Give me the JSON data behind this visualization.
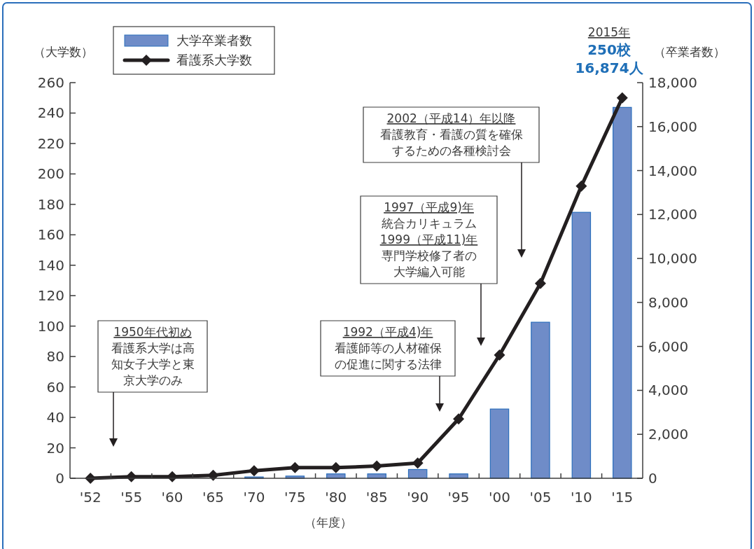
{
  "chart_data": {
    "type": "bar",
    "categories": [
      "'52",
      "'55",
      "'60",
      "'65",
      "'70",
      "'75",
      "'80",
      "'85",
      "'90",
      "'95",
      "'00",
      "'05",
      "'10",
      "'15"
    ],
    "series": [
      {
        "name": "大学卒業者数",
        "axis": "y2",
        "color": "#6f8cc8",
        "values": [
          0,
          0,
          0,
          null,
          60,
          100,
          200,
          200,
          400,
          200,
          3150,
          7100,
          12100,
          16874
        ]
      },
      {
        "name": "看護系大学数",
        "type": "line",
        "axis": "y",
        "color": "#231f20",
        "marker": "diamond",
        "values": [
          0,
          1,
          1,
          2,
          5,
          7,
          7,
          8,
          10,
          39,
          81,
          128,
          192,
          250
        ]
      }
    ],
    "xlabel": "（年度）",
    "ylabel": "（大学数）",
    "y2label": "（卒業者数）",
    "ylim": [
      0,
      260
    ],
    "yticks": [
      0,
      20,
      40,
      60,
      80,
      100,
      120,
      140,
      160,
      180,
      200,
      220,
      240,
      260
    ],
    "y2lim": [
      0,
      18000
    ],
    "y2ticks": [
      {
        "value": 0,
        "label": "0"
      },
      {
        "value": 2000,
        "label": "2,000"
      },
      {
        "value": 4000,
        "label": "4,000"
      },
      {
        "value": 6000,
        "label": "6,000"
      },
      {
        "value": 8000,
        "label": "8,000"
      },
      {
        "value": 10000,
        "label": "10,000"
      },
      {
        "value": 12000,
        "label": "12,000"
      },
      {
        "value": 14000,
        "label": "14,000"
      },
      {
        "value": 16000,
        "label": "16,000"
      },
      {
        "value": 18000,
        "label": "18,000"
      }
    ],
    "legend": "top left",
    "grid": false,
    "annotations": [
      "2015年",
      "250校",
      "16,874人",
      "1950年代初め",
      "看護系大学は高知女子大学と東京大学のみ",
      "1992（平成4)年",
      "看護師等の人材確保の促進に関する法律",
      "1997（平成9)年",
      "統合カリキュラム",
      "1999（平成11)年",
      "専門学校修了者の大学編入可能",
      "2002（平成14）年以降",
      "看護教育・看護の質を確保するための各種検討会"
    ]
  }
}
